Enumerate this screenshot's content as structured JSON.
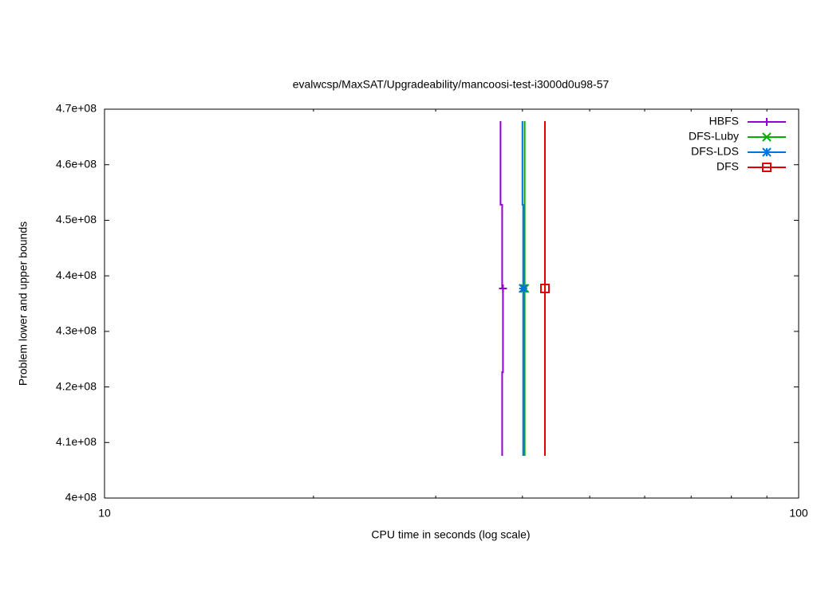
{
  "chart_data": {
    "type": "line",
    "title": "evalwcsp/MaxSAT/Upgradeability/mancoosi-test-i3000d0u98-57",
    "x_label": "CPU time in seconds (log scale)",
    "y_label": "Problem lower and upper bounds",
    "x_log": true,
    "xlim": [
      10,
      100
    ],
    "xticks": [
      10,
      100
    ],
    "x_minor_ticks": [
      20,
      30,
      40,
      50,
      60,
      70,
      80,
      90
    ],
    "ylim": [
      400000000,
      470000000
    ],
    "yticks": [
      {
        "value": 400000000,
        "label": "4e+08"
      },
      {
        "value": 410000000,
        "label": "4.1e+08"
      },
      {
        "value": 420000000,
        "label": "4.2e+08"
      },
      {
        "value": 430000000,
        "label": "4.3e+08"
      },
      {
        "value": 440000000,
        "label": "4.4e+08"
      },
      {
        "value": 450000000,
        "label": "4.5e+08"
      },
      {
        "value": 460000000,
        "label": "4.6e+08"
      },
      {
        "value": 470000000,
        "label": "4.7e+08"
      }
    ],
    "grid": false,
    "legend": "top-right",
    "series": [
      {
        "name": "HBFS",
        "color": "#9400d3",
        "marker": "plus",
        "x": [
          37.2,
          37.2,
          37.4,
          37.4,
          null,
          37.4,
          37.4,
          37.5,
          37.5
        ],
        "values": [
          467850000,
          452800000,
          452800000,
          437730000,
          null,
          407600000,
          422660000,
          422660000,
          437730000
        ]
      },
      {
        "name": "DFS-Luby",
        "color": "#00b000",
        "marker": "cross",
        "x": [
          40.3,
          40.3,
          null,
          40.3,
          40.3
        ],
        "values": [
          467850000,
          437730000,
          null,
          407600000,
          437730000
        ]
      },
      {
        "name": "DFS-LDS",
        "color": "#0072e0",
        "marker": "star",
        "x": [
          40.0,
          40.0,
          40.1,
          40.1,
          null,
          40.1,
          40.1
        ],
        "values": [
          467850000,
          452800000,
          452800000,
          437730000,
          null,
          407600000,
          437730000
        ]
      },
      {
        "name": "DFS",
        "color": "#e00000",
        "marker": "square",
        "x": [
          43.1,
          43.1,
          null,
          43.1,
          43.1
        ],
        "values": [
          467850000,
          437730000,
          null,
          407600000,
          437730000
        ]
      }
    ]
  }
}
